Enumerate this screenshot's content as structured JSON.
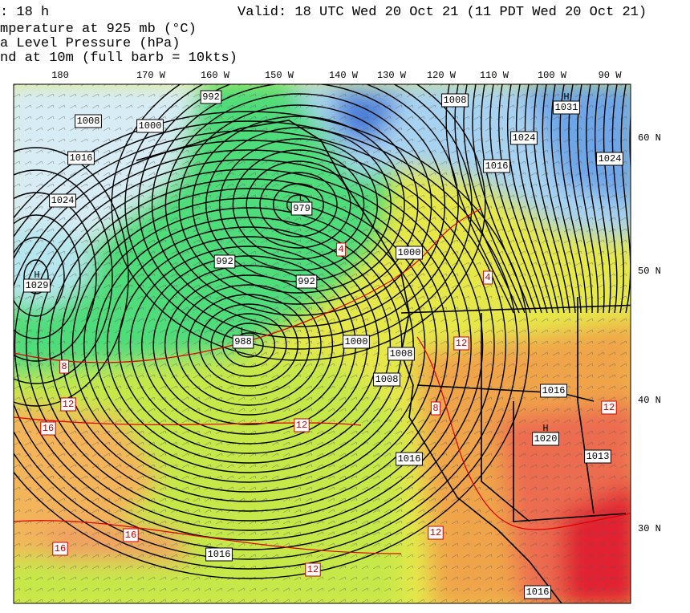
{
  "header": {
    "forecast": ":   18 h",
    "valid": "Valid: 18 UTC Wed 20 Oct 21 (11 PDT Wed 20 Oct 21)",
    "lines": [
      "mperature at 925 mb (°C)",
      "a Level Pressure (hPa)",
      "nd at 10m (full barb = 10kts)"
    ]
  },
  "map": {
    "longitudes": [
      "180",
      "170 W",
      "160 W",
      "150 W",
      "140 W",
      "130 W",
      "120 W",
      "110 W",
      "100 W",
      "90 W"
    ],
    "latitudes": [
      "60 N",
      "50 N",
      "40 N",
      "30 N"
    ],
    "pressure_labels": [
      "992",
      "1008",
      "1000",
      "1016",
      "1024",
      "992",
      "992",
      "1000",
      "1008",
      "1008",
      "1000",
      "1016",
      "1016",
      "1024",
      "1016",
      "1024",
      "1016",
      "1013",
      "1016",
      "1008"
    ],
    "centers": [
      {
        "kind": "L",
        "value": "979"
      },
      {
        "kind": "H",
        "value": "1029"
      },
      {
        "kind": "L",
        "value": "988"
      },
      {
        "kind": "H",
        "value": "1031"
      },
      {
        "kind": "H",
        "value": "1020"
      }
    ],
    "temperature_labels": [
      "4",
      "4",
      "8",
      "12",
      "16",
      "12",
      "16",
      "16",
      "12",
      "12",
      "12",
      "8",
      "12"
    ]
  }
}
